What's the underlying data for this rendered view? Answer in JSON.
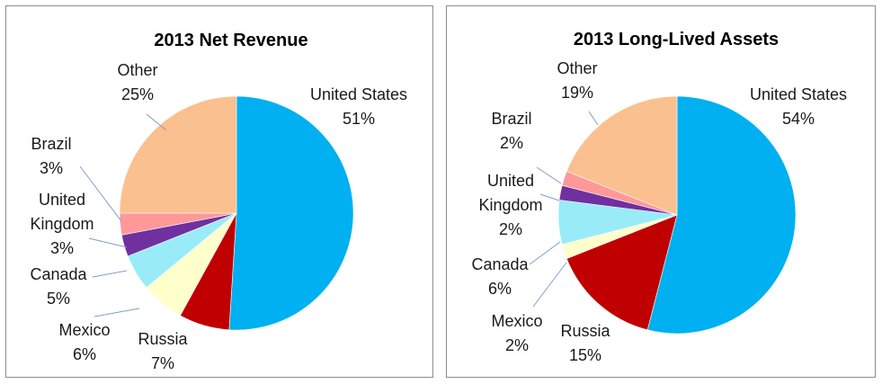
{
  "chart_data": [
    {
      "type": "pie",
      "title": "2013 Net Revenue",
      "slices": [
        {
          "name": "United States",
          "value": 51,
          "label": "51%",
          "color": "#00b0f0"
        },
        {
          "name": "Russia",
          "value": 7,
          "label": "7%",
          "color": "#c00000"
        },
        {
          "name": "Mexico",
          "value": 6,
          "label": "6%",
          "color": "#ffffcc"
        },
        {
          "name": "Canada",
          "value": 5,
          "label": "5%",
          "color": "#99ecf7"
        },
        {
          "name": "United Kingdom",
          "value": 3,
          "label": "3%",
          "color": "#7030a0"
        },
        {
          "name": "Brazil",
          "value": 3,
          "label": "3%",
          "color": "#ff9999"
        },
        {
          "name": "Other",
          "value": 25,
          "label": "25%",
          "color": "#fac090"
        }
      ]
    },
    {
      "type": "pie",
      "title": "2013 Long-Lived Assets",
      "slices": [
        {
          "name": "United States",
          "value": 54,
          "label": "54%",
          "color": "#00b0f0"
        },
        {
          "name": "Russia",
          "value": 15,
          "label": "15%",
          "color": "#c00000"
        },
        {
          "name": "Mexico",
          "value": 2,
          "label": "2%",
          "color": "#ffffcc"
        },
        {
          "name": "Canada",
          "value": 6,
          "label": "6%",
          "color": "#99ecf7"
        },
        {
          "name": "United Kingdom",
          "value": 2,
          "label": "2%",
          "color": "#7030a0"
        },
        {
          "name": "Brazil",
          "value": 2,
          "label": "2%",
          "color": "#ff9999"
        },
        {
          "name": "Other",
          "value": 19,
          "label": "19%",
          "color": "#fac090"
        }
      ]
    }
  ]
}
